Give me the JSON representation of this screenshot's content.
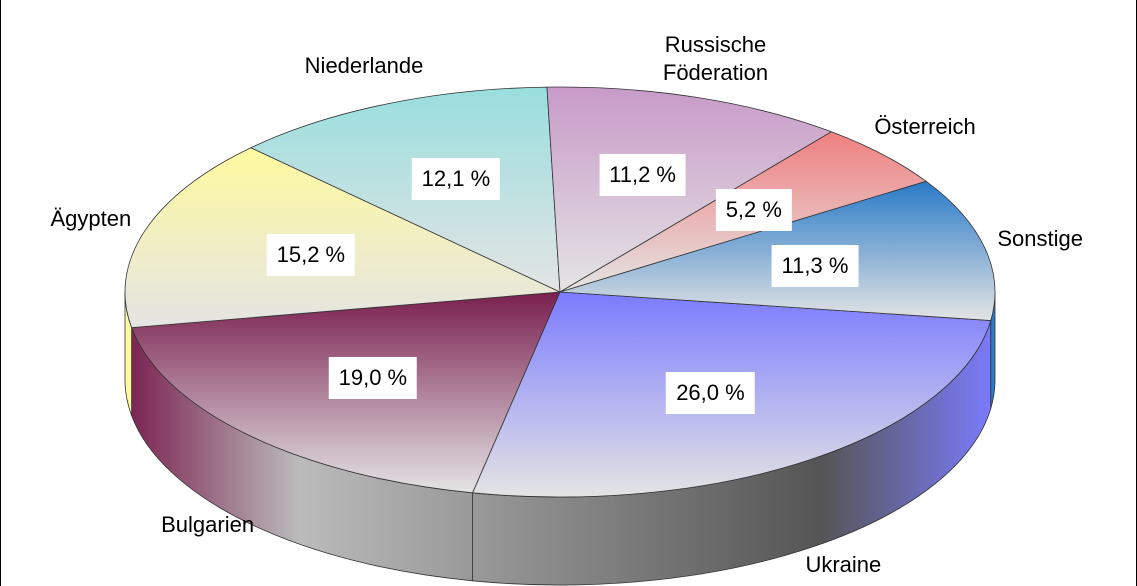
{
  "chart_data": {
    "type": "pie",
    "categories": [
      "Ukraine",
      "Bulgarien",
      "Ägypten",
      "Niederlande",
      "Russische Föderation",
      "Österreich",
      "Sonstige"
    ],
    "values": [
      26.0,
      19.0,
      15.2,
      12.1,
      11.2,
      5.2,
      11.3
    ],
    "value_labels": [
      "26,0 %",
      "19,0 %",
      "15,2 %",
      "12,1 %",
      "11,2 %",
      "5,2 %",
      "11,3 %"
    ],
    "colors": [
      "#7b7bff",
      "#7a1f4f",
      "#fffaa0",
      "#99dede",
      "#c89ac8",
      "#f08080",
      "#2a7ac8"
    ]
  }
}
